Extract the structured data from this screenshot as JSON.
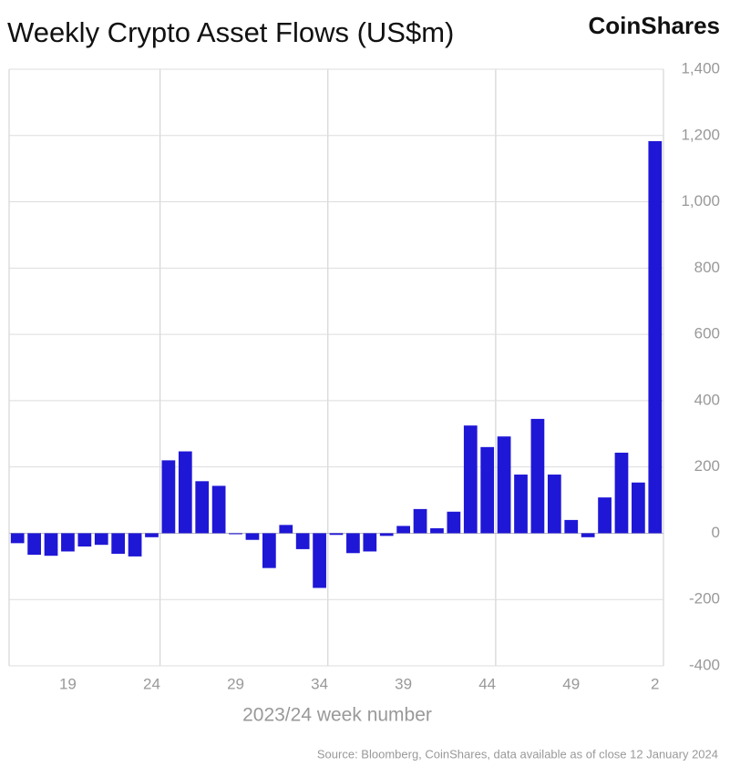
{
  "chart_data": {
    "type": "bar",
    "title": "Weekly Crypto Asset Flows (US$m)",
    "brand": "CoinShares",
    "x_label": "2023/24 week number",
    "source": "Source: Bloomberg, CoinShares, data available as of close 12 January 2024",
    "categories": [
      null,
      null,
      null,
      "19",
      null,
      null,
      null,
      null,
      "24",
      null,
      null,
      null,
      null,
      "29",
      null,
      null,
      null,
      null,
      "34",
      null,
      null,
      null,
      null,
      "39",
      null,
      null,
      null,
      null,
      "44",
      null,
      null,
      null,
      null,
      "49",
      null,
      null,
      null,
      null,
      "2"
    ],
    "values": [
      -30,
      -65,
      -68,
      -55,
      -40,
      -35,
      -62,
      -70,
      -12,
      220,
      247,
      157,
      143,
      -3,
      -20,
      -105,
      25,
      -48,
      -165,
      -5,
      -60,
      -55,
      -8,
      22,
      73,
      15,
      65,
      325,
      260,
      292,
      177,
      345,
      177,
      40,
      -12,
      108,
      243,
      153,
      1183
    ],
    "color": "#1f17d6",
    "ylim": [
      -400,
      1400
    ],
    "yticks": [
      {
        "value": -400,
        "label": "-400"
      },
      {
        "value": -200,
        "label": "-200"
      },
      0,
      200,
      400,
      600,
      800,
      {
        "value": 1000,
        "label": "1,000"
      },
      {
        "value": 1200,
        "label": "1,200"
      },
      {
        "value": 1400,
        "label": "1,400"
      }
    ],
    "grid": true
  }
}
